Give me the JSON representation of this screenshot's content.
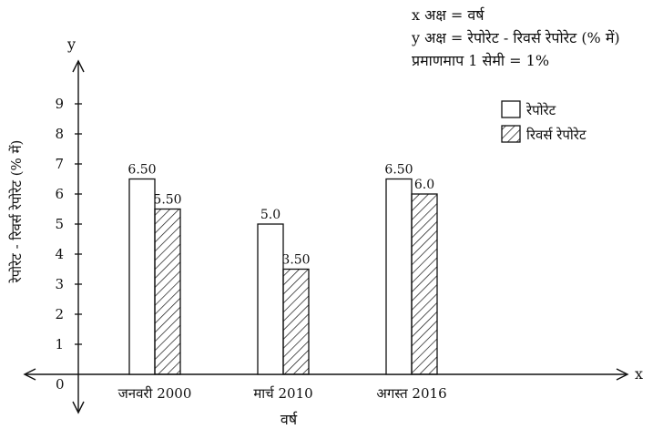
{
  "info": {
    "line1": "x अक्ष = वर्ष",
    "line2": "y अक्ष = रेपोरेट - रिवर्स रेपोरेट (% में)",
    "line3": "प्रमाणमाप 1 सेमी = 1%"
  },
  "axes": {
    "x_letter": "x",
    "y_letter": "y",
    "origin": "0"
  },
  "chart_data": {
    "type": "bar",
    "categories": [
      "जनवरी 2000",
      "मार्च 2010",
      "अगस्त 2016"
    ],
    "series": [
      {
        "name": "रेपोरेट",
        "values": [
          6.5,
          5.0,
          6.5
        ],
        "labels": [
          "6.50",
          "5.0",
          "6.50"
        ],
        "pattern": "plain"
      },
      {
        "name": "रिवर्स रेपोरेट",
        "values": [
          5.5,
          3.5,
          6.0
        ],
        "labels": [
          "5.50",
          "3.50",
          "6.0"
        ],
        "pattern": "hatched"
      }
    ],
    "xlabel": "वर्ष",
    "ylabel": "रेपोरेट - रिवर्स रेपोरेट (% में)",
    "ylim": [
      0,
      9
    ],
    "yticks": [
      1,
      2,
      3,
      4,
      5,
      6,
      7,
      8,
      9
    ],
    "grid": false,
    "legend": "top-right"
  }
}
